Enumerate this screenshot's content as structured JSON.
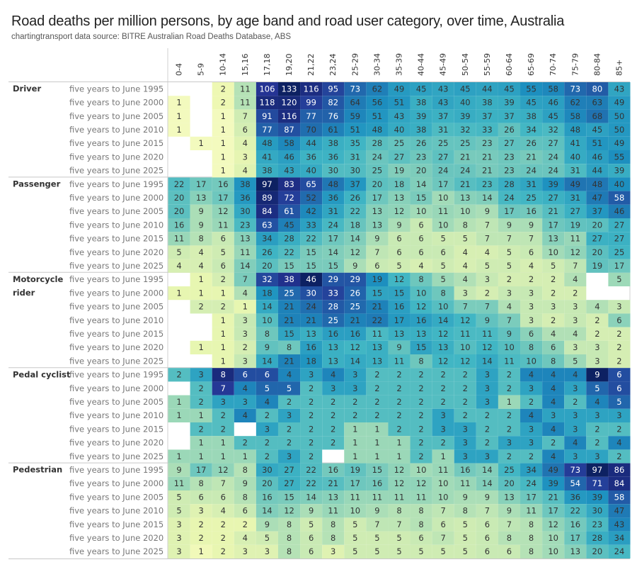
{
  "chart_data": {
    "type": "heatmap",
    "title": "Road deaths per million persons, by age band and road user category, over time, Australia",
    "subtitle": "chartingtransport  data source: BITRE Australian Road Deaths Database, ABS",
    "colormap": "YlGnBu, normalised per road user category",
    "color_low": "#ffffd9",
    "color_high": "#081d58",
    "columns": [
      "0-4",
      "5-9",
      "10-14",
      "15,16",
      "17,18",
      "19,20",
      "21,22",
      "23,24",
      "25-29",
      "30-34",
      "35-39",
      "40-44",
      "45-49",
      "50-54",
      "55-59",
      "60-64",
      "65-69",
      "70-74",
      "75-79",
      "80-84",
      "85+"
    ],
    "periods": [
      "five years to June 1995",
      "five years to June 2000",
      "five years to June 2005",
      "five years to June 2010",
      "five years to June 2015",
      "five years to June 2020",
      "five years to June 2025"
    ],
    "categories": [
      {
        "name": "Driver",
        "values": [
          [
            null,
            null,
            2,
            11,
            106,
            133,
            116,
            95,
            73,
            62,
            49,
            45,
            43,
            45,
            44,
            45,
            55,
            58,
            73,
            80,
            43
          ],
          [
            1,
            null,
            2,
            11,
            118,
            120,
            99,
            82,
            64,
            56,
            51,
            38,
            43,
            40,
            38,
            39,
            45,
            46,
            62,
            63,
            49
          ],
          [
            1,
            null,
            1,
            7,
            91,
            116,
            77,
            76,
            59,
            51,
            43,
            39,
            37,
            39,
            37,
            37,
            38,
            45,
            58,
            68,
            50
          ],
          [
            1,
            null,
            1,
            6,
            77,
            87,
            70,
            61,
            51,
            48,
            40,
            38,
            31,
            32,
            33,
            26,
            34,
            32,
            48,
            45,
            50
          ],
          [
            null,
            1,
            1,
            4,
            48,
            58,
            44,
            38,
            35,
            28,
            25,
            26,
            25,
            25,
            23,
            27,
            26,
            27,
            41,
            51,
            49
          ],
          [
            null,
            null,
            1,
            3,
            41,
            46,
            36,
            36,
            31,
            24,
            27,
            23,
            27,
            21,
            21,
            23,
            21,
            24,
            40,
            46,
            55
          ],
          [
            null,
            null,
            1,
            4,
            38,
            43,
            40,
            30,
            30,
            25,
            19,
            20,
            24,
            24,
            21,
            23,
            24,
            24,
            31,
            44,
            39
          ]
        ]
      },
      {
        "name": "Passenger",
        "values": [
          [
            22,
            17,
            16,
            38,
            97,
            83,
            65,
            48,
            37,
            20,
            18,
            14,
            17,
            21,
            23,
            28,
            31,
            39,
            49,
            48,
            40
          ],
          [
            20,
            13,
            17,
            36,
            89,
            72,
            52,
            36,
            26,
            17,
            13,
            15,
            10,
            13,
            14,
            24,
            25,
            27,
            31,
            47,
            58
          ],
          [
            20,
            9,
            12,
            30,
            84,
            61,
            42,
            31,
            22,
            13,
            12,
            10,
            11,
            10,
            9,
            17,
            16,
            21,
            27,
            37,
            46
          ],
          [
            16,
            9,
            11,
            23,
            63,
            45,
            33,
            24,
            18,
            13,
            9,
            6,
            10,
            8,
            7,
            9,
            9,
            17,
            19,
            20,
            27
          ],
          [
            11,
            8,
            6,
            13,
            34,
            28,
            22,
            17,
            14,
            9,
            6,
            6,
            5,
            5,
            7,
            7,
            7,
            13,
            11,
            27,
            27
          ],
          [
            5,
            4,
            5,
            11,
            26,
            22,
            15,
            14,
            12,
            7,
            6,
            6,
            6,
            4,
            4,
            5,
            6,
            10,
            12,
            20,
            25
          ],
          [
            4,
            4,
            6,
            14,
            20,
            15,
            15,
            15,
            9,
            6,
            5,
            4,
            5,
            4,
            5,
            5,
            4,
            5,
            7,
            19,
            17
          ]
        ]
      },
      {
        "name": "Motorcycle rider",
        "values": [
          [
            null,
            1,
            2,
            7,
            32,
            38,
            46,
            29,
            29,
            19,
            12,
            8,
            5,
            4,
            3,
            2,
            2,
            2,
            4,
            null,
            5
          ],
          [
            1,
            1,
            1,
            4,
            18,
            25,
            30,
            33,
            26,
            15,
            15,
            10,
            8,
            3,
            2,
            3,
            3,
            2,
            2,
            null,
            null
          ],
          [
            null,
            2,
            2,
            1,
            14,
            21,
            24,
            28,
            25,
            21,
            16,
            12,
            10,
            7,
            7,
            4,
            3,
            3,
            3,
            4,
            3
          ],
          [
            null,
            null,
            1,
            3,
            10,
            21,
            21,
            25,
            21,
            22,
            17,
            16,
            14,
            12,
            9,
            7,
            3,
            2,
            3,
            2,
            6
          ],
          [
            null,
            null,
            1,
            3,
            8,
            15,
            13,
            16,
            16,
            11,
            13,
            13,
            12,
            11,
            11,
            9,
            6,
            4,
            4,
            2,
            2
          ],
          [
            null,
            1,
            1,
            2,
            9,
            8,
            16,
            13,
            12,
            13,
            9,
            15,
            13,
            10,
            12,
            10,
            8,
            6,
            3,
            3,
            2
          ],
          [
            null,
            null,
            1,
            3,
            14,
            21,
            18,
            13,
            14,
            13,
            11,
            8,
            12,
            12,
            14,
            11,
            10,
            8,
            5,
            3,
            2
          ]
        ]
      },
      {
        "name": "Pedal cyclist",
        "values": [
          [
            2,
            3,
            8,
            6,
            6,
            4,
            3,
            4,
            3,
            2,
            2,
            2,
            2,
            2,
            3,
            2,
            4,
            4,
            4,
            9,
            6
          ],
          [
            null,
            2,
            7,
            4,
            5,
            5,
            2,
            3,
            3,
            2,
            2,
            2,
            2,
            2,
            3,
            2,
            3,
            4,
            3,
            5,
            6
          ],
          [
            1,
            2,
            3,
            3,
            4,
            2,
            2,
            2,
            2,
            2,
            2,
            2,
            2,
            2,
            3,
            1,
            2,
            4,
            2,
            4,
            5
          ],
          [
            1,
            1,
            2,
            4,
            2,
            3,
            2,
            2,
            2,
            2,
            2,
            2,
            3,
            2,
            2,
            2,
            4,
            3,
            3,
            3,
            3
          ],
          [
            null,
            2,
            2,
            null,
            3,
            2,
            2,
            2,
            1,
            1,
            2,
            2,
            3,
            3,
            2,
            2,
            3,
            4,
            3,
            2,
            2
          ],
          [
            null,
            1,
            1,
            2,
            2,
            2,
            2,
            2,
            1,
            1,
            1,
            2,
            2,
            3,
            2,
            3,
            3,
            2,
            4,
            2,
            4
          ],
          [
            1,
            1,
            1,
            1,
            2,
            3,
            2,
            null,
            1,
            1,
            1,
            2,
            1,
            3,
            3,
            2,
            2,
            4,
            3,
            3,
            2
          ]
        ]
      },
      {
        "name": "Pedestrian",
        "values": [
          [
            9,
            17,
            12,
            8,
            30,
            27,
            22,
            16,
            19,
            15,
            12,
            10,
            11,
            16,
            14,
            25,
            34,
            49,
            73,
            97,
            86
          ],
          [
            11,
            8,
            7,
            9,
            20,
            27,
            22,
            21,
            17,
            16,
            12,
            12,
            10,
            11,
            14,
            20,
            24,
            39,
            54,
            71,
            84
          ],
          [
            5,
            6,
            6,
            8,
            16,
            15,
            14,
            13,
            11,
            11,
            11,
            11,
            10,
            9,
            9,
            13,
            17,
            21,
            36,
            39,
            58
          ],
          [
            5,
            3,
            4,
            6,
            14,
            12,
            9,
            11,
            10,
            9,
            8,
            8,
            7,
            8,
            7,
            9,
            11,
            17,
            22,
            30,
            47
          ],
          [
            3,
            2,
            2,
            2,
            9,
            8,
            5,
            8,
            5,
            7,
            7,
            8,
            6,
            5,
            6,
            7,
            8,
            12,
            16,
            23,
            43
          ],
          [
            3,
            2,
            2,
            4,
            5,
            8,
            6,
            8,
            5,
            5,
            5,
            6,
            7,
            5,
            6,
            8,
            8,
            10,
            17,
            28,
            34
          ],
          [
            3,
            1,
            2,
            3,
            3,
            8,
            6,
            3,
            5,
            5,
            5,
            5,
            5,
            5,
            6,
            6,
            8,
            10,
            13,
            20,
            24
          ]
        ]
      }
    ]
  }
}
